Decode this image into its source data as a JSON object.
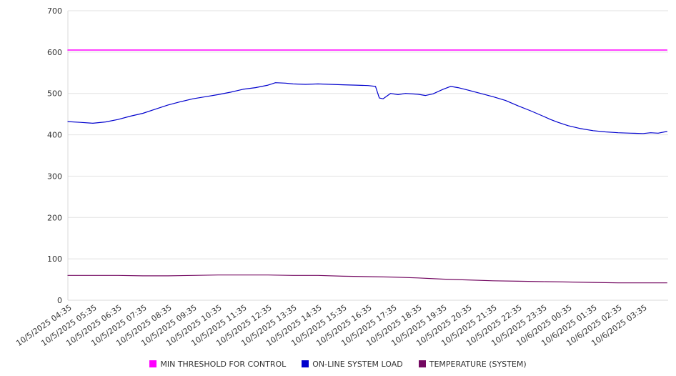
{
  "chart_data": {
    "type": "line",
    "title": "",
    "xlabel": "",
    "ylabel": "",
    "ylim": [
      0,
      700
    ],
    "ytick_step": 100,
    "x_hours_span": 24,
    "grid": true,
    "legend_position": "bottom",
    "axis_color": "#d9d9d9",
    "grid_color": "#e2e2e2",
    "tick_text_color": "#333333",
    "categories": [
      "10/5/2025 04:35",
      "10/5/2025 05:35",
      "10/5/2025 06:35",
      "10/5/2025 07:35",
      "10/5/2025 08:35",
      "10/5/2025 09:35",
      "10/5/2025 10:35",
      "10/5/2025 11:35",
      "10/5/2025 12:35",
      "10/5/2025 13:35",
      "10/5/2025 14:35",
      "10/5/2025 15:35",
      "10/5/2025 16:35",
      "10/5/2025 17:35",
      "10/5/2025 18:35",
      "10/5/2025 19:35",
      "10/5/2025 20:35",
      "10/5/2025 21:35",
      "10/5/2025 22:35",
      "10/5/2025 23:35",
      "10/6/2025 00:35",
      "10/6/2025 01:35",
      "10/6/2025 02:35",
      "10/6/2025 03:35"
    ],
    "series": [
      {
        "name": "MIN THRESHOLD FOR CONTROL",
        "color": "#ff00ff",
        "x": [
          0,
          23.95
        ],
        "values": [
          605,
          605
        ]
      },
      {
        "name": "ON-LINE SYSTEM LOAD",
        "color": "#0000cd",
        "x": [
          0,
          0.5,
          1,
          1.5,
          2,
          2.5,
          3,
          3.5,
          4,
          4.5,
          5,
          5.5,
          6,
          6.5,
          7,
          7.5,
          8,
          8.3,
          8.7,
          9,
          9.5,
          10,
          10.5,
          11,
          11.5,
          12,
          12.3,
          12.45,
          12.6,
          12.9,
          13.2,
          13.5,
          14,
          14.3,
          14.6,
          15,
          15.3,
          15.6,
          16,
          16.5,
          17,
          17.5,
          18,
          18.5,
          19,
          19.3,
          19.6,
          20,
          20.5,
          21,
          21.5,
          22,
          22.5,
          23,
          23.3,
          23.6,
          23.95
        ],
        "values": [
          432,
          430,
          428,
          431,
          437,
          445,
          452,
          462,
          472,
          480,
          487,
          492,
          497,
          503,
          510,
          514,
          520,
          526,
          525,
          523,
          522,
          523,
          522,
          521,
          520,
          519,
          517,
          489,
          487,
          500,
          497,
          500,
          498,
          495,
          499,
          510,
          517,
          514,
          508,
          500,
          492,
          483,
          470,
          458,
          445,
          437,
          430,
          422,
          415,
          410,
          407,
          405,
          404,
          403,
          405,
          404,
          408
        ]
      },
      {
        "name": "TEMPERATURE (SYSTEM)",
        "color": "#730861",
        "x": [
          0,
          1,
          2,
          3,
          4,
          5,
          6,
          7,
          8,
          9,
          10,
          11,
          12,
          13,
          14,
          15,
          16,
          17,
          18,
          19,
          20,
          21,
          22,
          23,
          23.95
        ],
        "values": [
          60,
          60,
          60,
          59,
          59,
          60,
          61,
          61,
          61,
          60,
          60,
          58,
          57,
          56,
          54,
          51,
          49,
          47,
          46,
          45,
          44,
          43,
          42,
          42,
          42
        ]
      }
    ]
  }
}
